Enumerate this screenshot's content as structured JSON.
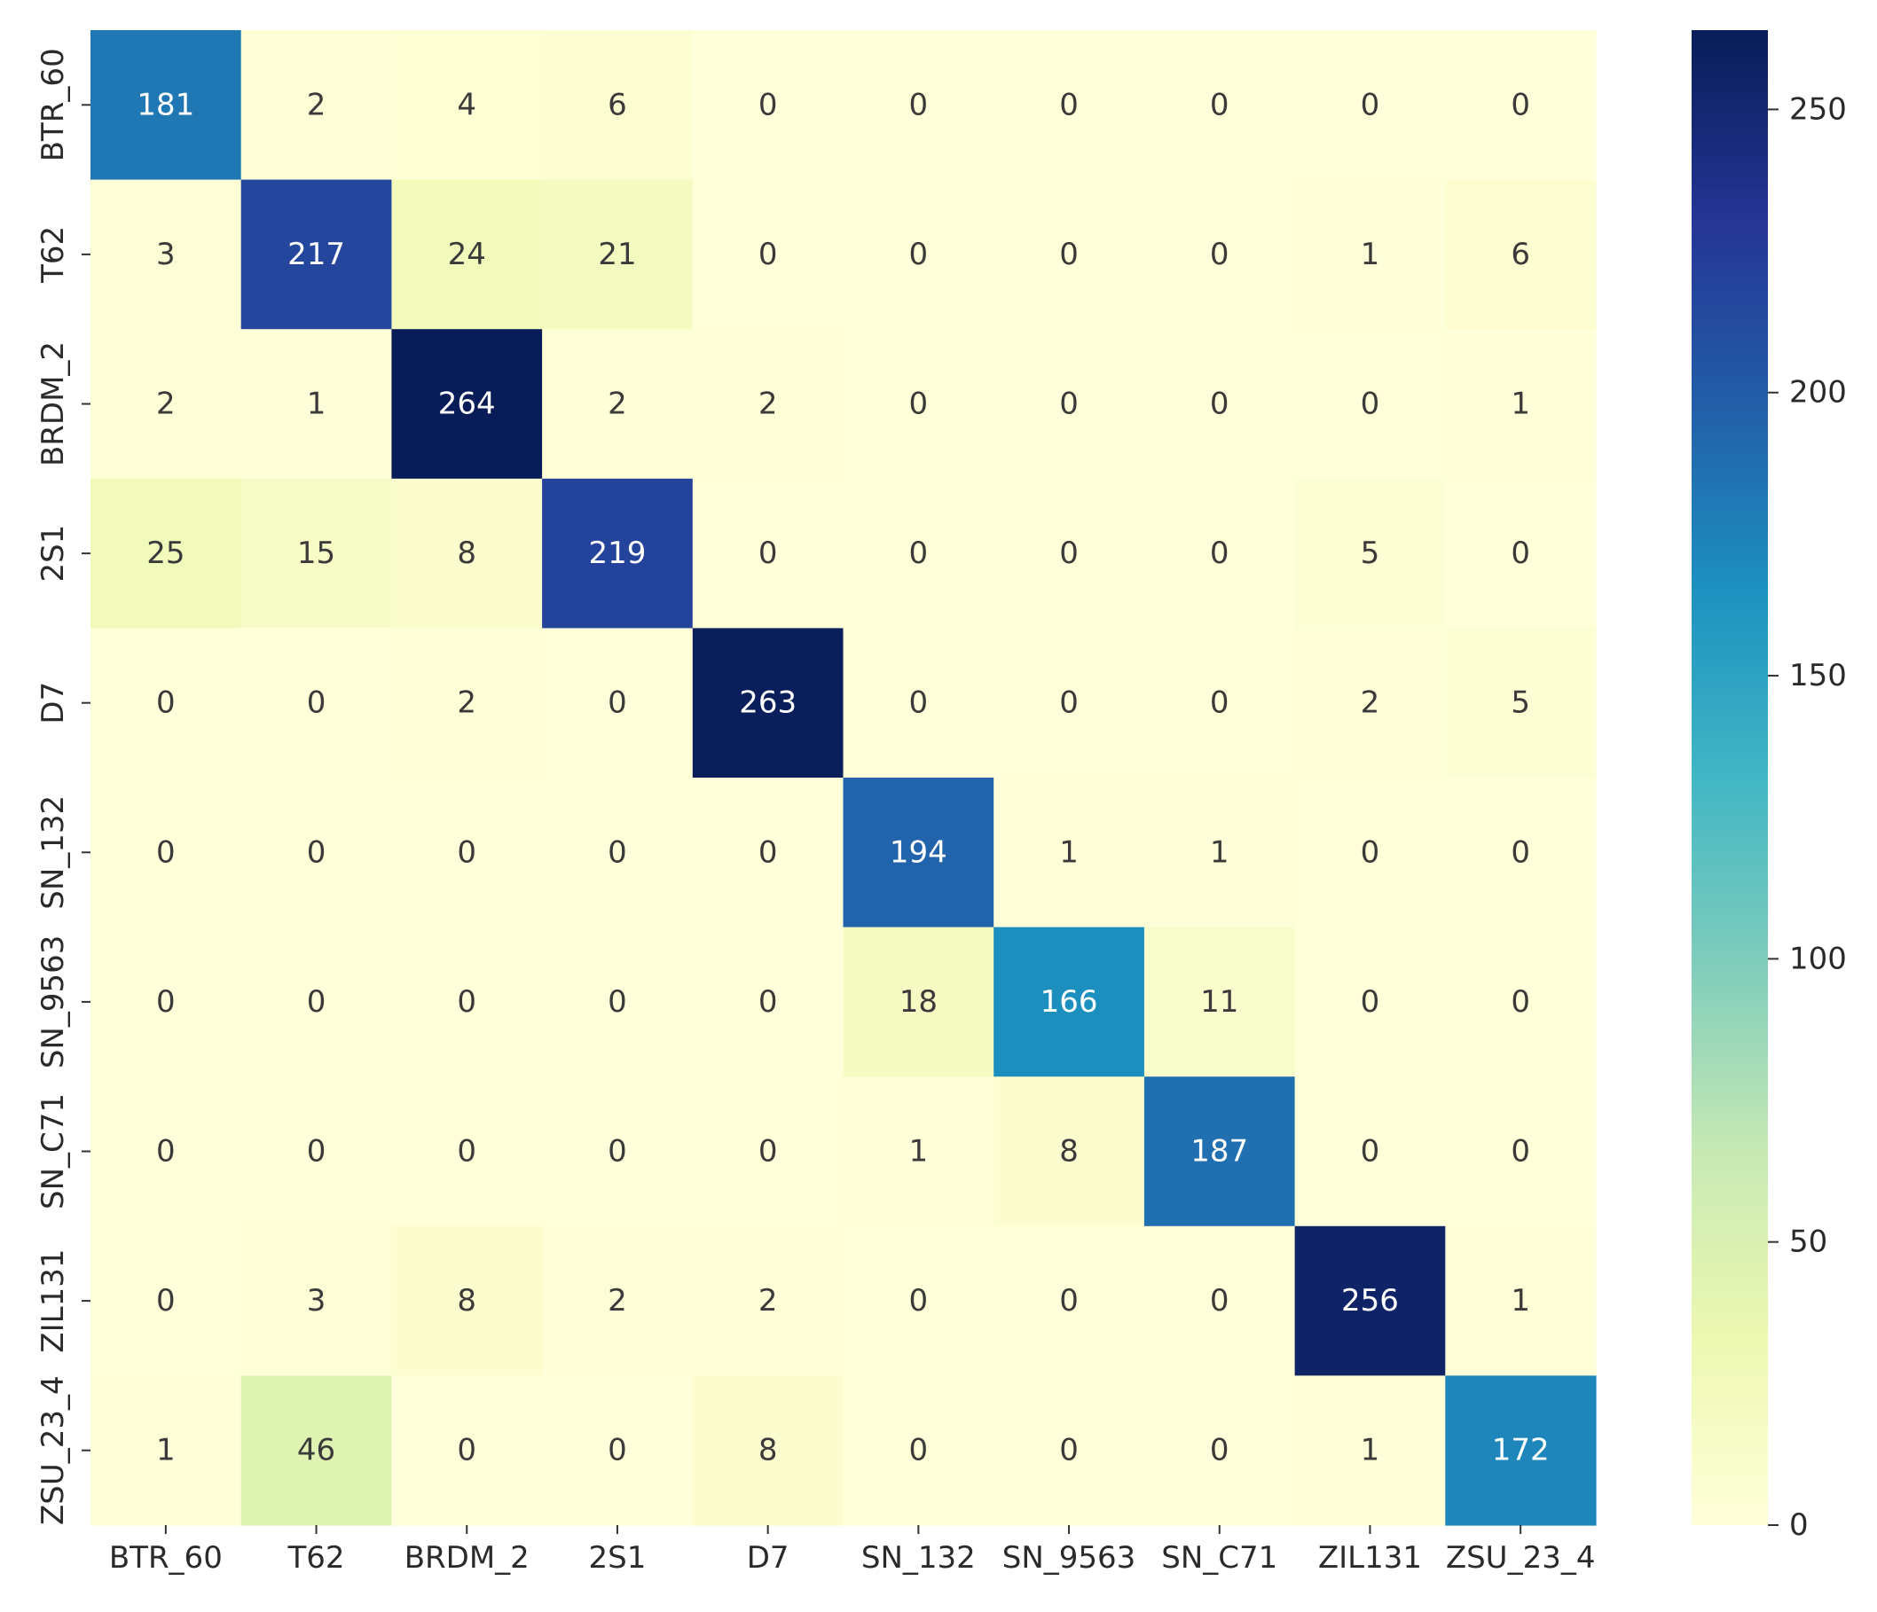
{
  "chart_data": {
    "type": "heatmap",
    "title": "",
    "xlabel": "",
    "ylabel": "",
    "rows": [
      "BTR_60",
      "T62",
      "BRDM_2",
      "2S1",
      "D7",
      "SN_132",
      "SN_9563",
      "SN_C71",
      "ZIL131",
      "ZSU_23_4"
    ],
    "columns": [
      "BTR_60",
      "T62",
      "BRDM_2",
      "2S1",
      "D7",
      "SN_132",
      "SN_9563",
      "SN_C71",
      "ZIL131",
      "ZSU_23_4"
    ],
    "values": [
      [
        181,
        2,
        4,
        6,
        0,
        0,
        0,
        0,
        0,
        0
      ],
      [
        3,
        217,
        24,
        21,
        0,
        0,
        0,
        0,
        1,
        6
      ],
      [
        2,
        1,
        264,
        2,
        2,
        0,
        0,
        0,
        0,
        1
      ],
      [
        25,
        15,
        8,
        219,
        0,
        0,
        0,
        0,
        5,
        0
      ],
      [
        0,
        0,
        2,
        0,
        263,
        0,
        0,
        0,
        2,
        5
      ],
      [
        0,
        0,
        0,
        0,
        0,
        194,
        1,
        1,
        0,
        0
      ],
      [
        0,
        0,
        0,
        0,
        0,
        18,
        166,
        11,
        0,
        0
      ],
      [
        0,
        0,
        0,
        0,
        0,
        1,
        8,
        187,
        0,
        0
      ],
      [
        0,
        3,
        8,
        2,
        2,
        0,
        0,
        0,
        256,
        1
      ],
      [
        1,
        46,
        0,
        0,
        8,
        0,
        0,
        0,
        1,
        172
      ]
    ],
    "colorbar": {
      "colormap": "YlGnBu",
      "min": 0,
      "max": 264,
      "ticks": [
        0,
        50,
        100,
        150,
        200,
        250
      ],
      "tick_labels": [
        "0",
        "50",
        "100",
        "150",
        "200",
        "250"
      ]
    },
    "colors": {
      "stops": [
        "#ffffd9",
        "#edf8b1",
        "#c7e9b4",
        "#7fcdbb",
        "#41b6c4",
        "#1d91c0",
        "#225ea8",
        "#253494",
        "#081d58"
      ],
      "light_text": "#ffffff",
      "dark_text": "#3a3a3a"
    }
  }
}
